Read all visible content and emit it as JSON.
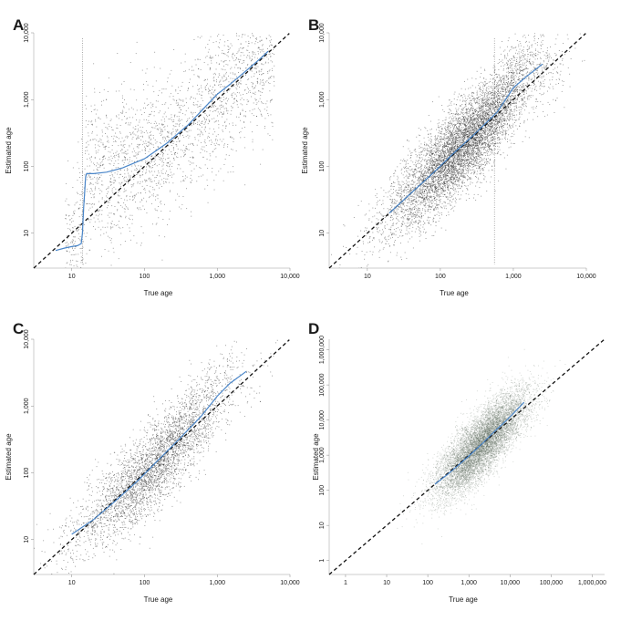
{
  "chart_data": [
    {
      "panel": "A",
      "type": "scatter",
      "xlabel": "True age",
      "ylabel": "Estimated age",
      "scale": "log10",
      "xlim": [
        3,
        10000
      ],
      "ylim": [
        3,
        10000
      ],
      "x_ticks": [
        10,
        100,
        1000,
        10000
      ],
      "x_tick_labels": [
        "10",
        "100",
        "1,000",
        "10,000"
      ],
      "y_ticks": [
        10,
        100,
        1000,
        10000
      ],
      "y_tick_labels": [
        "10",
        "100",
        "1,000",
        "10,000"
      ],
      "reference_line": "y = x (black dashed)",
      "vertical_marker_x": 14,
      "scatter_cloud": {
        "count": 2400,
        "x_min": 8,
        "x_max": 6000,
        "spread_decades": 0.55,
        "shape": "y rises from about 75 at x=15 to the diagonal at high x",
        "color": "#333333"
      },
      "trend_line": {
        "color": "#4a86c9",
        "points": [
          [
            6,
            5.5
          ],
          [
            8,
            6
          ],
          [
            10,
            6.3
          ],
          [
            12,
            6.5
          ],
          [
            13.5,
            7
          ],
          [
            14,
            10
          ],
          [
            14.3,
            16
          ],
          [
            14.6,
            25
          ],
          [
            15,
            40
          ],
          [
            15.5,
            70
          ],
          [
            16,
            78
          ],
          [
            20,
            78
          ],
          [
            30,
            82
          ],
          [
            50,
            95
          ],
          [
            100,
            130
          ],
          [
            200,
            220
          ],
          [
            400,
            420
          ],
          [
            700,
            800
          ],
          [
            1000,
            1200
          ],
          [
            1500,
            1700
          ],
          [
            2500,
            2700
          ],
          [
            4000,
            4200
          ],
          [
            5000,
            5300
          ]
        ]
      }
    },
    {
      "panel": "B",
      "type": "scatter",
      "xlabel": "True age",
      "ylabel": "Estimated age",
      "scale": "log10",
      "xlim": [
        3,
        10000
      ],
      "ylim": [
        3,
        10000
      ],
      "x_ticks": [
        10,
        100,
        1000,
        10000
      ],
      "x_tick_labels": [
        "10",
        "100",
        "1,000",
        "10,000"
      ],
      "y_ticks": [
        10,
        100,
        1000,
        10000
      ],
      "y_tick_labels": [
        "10",
        "100",
        "1,000",
        "10,000"
      ],
      "reference_line": "y = x (black dashed)",
      "vertical_marker_x": 550,
      "scatter_cloud": {
        "count": 7000,
        "x_min": 15,
        "x_max": 3000,
        "spread_decades": 0.32,
        "density": "dense",
        "color": "#333333"
      },
      "trend_line": {
        "color": "#4a86c9",
        "points": [
          [
            20,
            20
          ],
          [
            40,
            40
          ],
          [
            80,
            80
          ],
          [
            150,
            155
          ],
          [
            300,
            310
          ],
          [
            600,
            650
          ],
          [
            1000,
            1500
          ],
          [
            1500,
            2200
          ],
          [
            2500,
            3400
          ]
        ]
      }
    },
    {
      "panel": "C",
      "type": "scatter",
      "xlabel": "True age",
      "ylabel": "Estimated age",
      "scale": "log10",
      "xlim": [
        3,
        10000
      ],
      "ylim": [
        3,
        10000
      ],
      "x_ticks": [
        10,
        100,
        1000,
        10000
      ],
      "x_tick_labels": [
        "10",
        "100",
        "1,000",
        "10,000"
      ],
      "y_ticks": [
        10,
        100,
        1000,
        10000
      ],
      "y_tick_labels": [
        "10",
        "100",
        "1,000",
        "10,000"
      ],
      "reference_line": "y = x (black dashed)",
      "scatter_cloud": {
        "count": 3800,
        "x_min": 8,
        "x_max": 2500,
        "spread_decades": 0.32,
        "color": "#333333"
      },
      "trend_line": {
        "color": "#4a86c9",
        "points": [
          [
            10,
            12
          ],
          [
            20,
            20
          ],
          [
            40,
            38
          ],
          [
            80,
            75
          ],
          [
            150,
            150
          ],
          [
            300,
            320
          ],
          [
            600,
            700
          ],
          [
            1000,
            1400
          ],
          [
            1500,
            2200
          ],
          [
            2500,
            3300
          ]
        ]
      }
    },
    {
      "panel": "D",
      "type": "scatter",
      "xlabel": "True age",
      "ylabel": "Estimated age",
      "scale": "log10",
      "xlim": [
        0.4,
        2000000
      ],
      "ylim": [
        0.4,
        2000000
      ],
      "x_ticks": [
        1,
        10,
        100,
        1000,
        10000,
        100000,
        1000000
      ],
      "x_tick_labels": [
        "1",
        "10",
        "100",
        "1,000",
        "10,000",
        "100,000",
        "1,000,000"
      ],
      "y_ticks": [
        1,
        10,
        100,
        1000,
        10000,
        100000,
        1000000
      ],
      "y_tick_labels": [
        "1",
        "10",
        "100",
        "1,000",
        "10,000",
        "100,000",
        "1,000,000"
      ],
      "reference_line": "y = x (black dashed)",
      "scatter_cloud": {
        "count": 9000,
        "x_center": 2000,
        "spread_decades": 0.45,
        "density": "very dense, blurred",
        "color": "#556655"
      },
      "trend_line": {
        "color": "#4a86c9",
        "points": [
          [
            150,
            150
          ],
          [
            300,
            280
          ],
          [
            600,
            560
          ],
          [
            1000,
            950
          ],
          [
            2000,
            2000
          ],
          [
            4000,
            4500
          ],
          [
            8000,
            9500
          ],
          [
            15000,
            20000
          ],
          [
            22000,
            32000
          ]
        ]
      }
    }
  ]
}
